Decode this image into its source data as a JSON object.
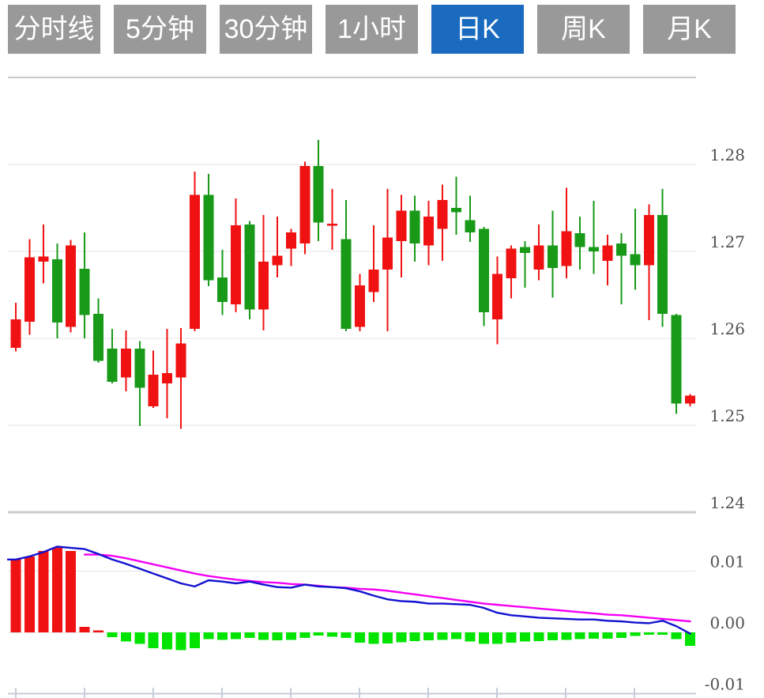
{
  "toolbar": {
    "active_color": "#1a6bbf",
    "inactive_color": "#999999",
    "buttons": [
      {
        "label": "分时线",
        "active": false
      },
      {
        "label": "5分钟",
        "active": false
      },
      {
        "label": "30分钟",
        "active": false
      },
      {
        "label": "1小时",
        "active": false
      },
      {
        "label": "日K",
        "active": true
      },
      {
        "label": "周K",
        "active": false
      },
      {
        "label": "月K",
        "active": false
      }
    ]
  },
  "chart_data": [
    {
      "type": "candlestick",
      "title": "",
      "y_axis": {
        "labels": [
          "1.28",
          "1.27",
          "1.26",
          "1.25",
          "1.24"
        ],
        "values": [
          1.28,
          1.27,
          1.26,
          1.25,
          1.24
        ],
        "range": [
          1.235,
          1.29
        ],
        "grid": true,
        "position": "right"
      },
      "colors": {
        "up": "#f01212",
        "down": "#189a18"
      },
      "ohlc_order": [
        "open",
        "high",
        "low",
        "close"
      ],
      "candles": [
        [
          1.2589,
          1.2641,
          1.2585,
          1.2622
        ],
        [
          1.2619,
          1.2714,
          1.2604,
          1.2693
        ],
        [
          1.2688,
          1.2731,
          1.2663,
          1.2694
        ],
        [
          1.2691,
          1.2709,
          1.26,
          1.2618
        ],
        [
          1.2613,
          1.2713,
          1.2607,
          1.2707
        ],
        [
          1.268,
          1.2722,
          1.26,
          1.2627
        ],
        [
          1.2628,
          1.2646,
          1.2572,
          1.2574
        ],
        [
          1.2588,
          1.2611,
          1.2548,
          1.255
        ],
        [
          1.2555,
          1.2609,
          1.2539,
          1.2588
        ],
        [
          1.2588,
          1.2597,
          1.2499,
          1.2543
        ],
        [
          1.2522,
          1.2586,
          1.252,
          1.2558
        ],
        [
          1.2548,
          1.2611,
          1.2508,
          1.256
        ],
        [
          1.2555,
          1.2612,
          1.2496,
          1.2594
        ],
        [
          1.2611,
          1.2792,
          1.2608,
          1.2765
        ],
        [
          1.2765,
          1.2789,
          1.266,
          1.2667
        ],
        [
          1.267,
          1.2702,
          1.2627,
          1.2642
        ],
        [
          1.2639,
          1.2761,
          1.263,
          1.273
        ],
        [
          1.2731,
          1.2735,
          1.2622,
          1.2633
        ],
        [
          1.2633,
          1.2742,
          1.2609,
          1.2688
        ],
        [
          1.2684,
          1.274,
          1.267,
          1.2695
        ],
        [
          1.2703,
          1.2726,
          1.2683,
          1.2722
        ],
        [
          1.2709,
          1.2803,
          1.2697,
          1.2798
        ],
        [
          1.2798,
          1.2828,
          1.2712,
          1.2733
        ],
        [
          1.273,
          1.2772,
          1.2702,
          1.2732
        ],
        [
          1.2714,
          1.2759,
          1.2608,
          1.2611
        ],
        [
          1.2613,
          1.2674,
          1.2608,
          1.2661
        ],
        [
          1.2653,
          1.273,
          1.2642,
          1.2679
        ],
        [
          1.2679,
          1.2772,
          1.2608,
          1.2716
        ],
        [
          1.2712,
          1.2765,
          1.267,
          1.2747
        ],
        [
          1.2747,
          1.2764,
          1.2688,
          1.2709
        ],
        [
          1.2707,
          1.2758,
          1.2684,
          1.274
        ],
        [
          1.2726,
          1.2777,
          1.2689,
          1.2759
        ],
        [
          1.275,
          1.2786,
          1.2719,
          1.2745
        ],
        [
          1.2736,
          1.2764,
          1.2711,
          1.2722
        ],
        [
          1.2726,
          1.2728,
          1.2614,
          1.263
        ],
        [
          1.2622,
          1.2694,
          1.2593,
          1.2674
        ],
        [
          1.2669,
          1.2707,
          1.2646,
          1.2703
        ],
        [
          1.2705,
          1.2712,
          1.2658,
          1.2698
        ],
        [
          1.2679,
          1.2731,
          1.2667,
          1.2707
        ],
        [
          1.2707,
          1.2747,
          1.2647,
          1.2681
        ],
        [
          1.2683,
          1.2773,
          1.2669,
          1.2723
        ],
        [
          1.2721,
          1.274,
          1.2679,
          1.2705
        ],
        [
          1.2705,
          1.2758,
          1.2674,
          1.27
        ],
        [
          1.2689,
          1.2719,
          1.2661,
          1.2707
        ],
        [
          1.2709,
          1.2721,
          1.2639,
          1.2695
        ],
        [
          1.2697,
          1.2749,
          1.2656,
          1.2684
        ],
        [
          1.2684,
          1.2754,
          1.2621,
          1.2742
        ],
        [
          1.2742,
          1.2772,
          1.2613,
          1.2628
        ],
        [
          1.2627,
          1.2628,
          1.2513,
          1.2525
        ],
        [
          1.2525,
          1.2536,
          1.2522,
          1.2534
        ]
      ]
    },
    {
      "type": "macd",
      "title": "",
      "y_axis": {
        "labels": [
          "0.01",
          "0.00",
          "-0.01"
        ],
        "values": [
          0.01,
          0.0,
          -0.01
        ],
        "range": [
          -0.013,
          0.016
        ],
        "grid": true,
        "position": "right"
      },
      "colors": {
        "positive": "#f01212",
        "negative": "#00e400",
        "dif": "#1212d0",
        "dea": "#f500f5"
      },
      "histogram": [
        0.012,
        0.0124,
        0.0133,
        0.0138,
        0.0133,
        0.0009,
        0.0003,
        -0.0008,
        -0.0015,
        -0.0019,
        -0.0026,
        -0.0028,
        -0.0029,
        -0.0026,
        -0.0011,
        -0.0012,
        -0.0011,
        -0.0009,
        -0.0012,
        -0.0013,
        -0.0012,
        -0.0009,
        -0.0005,
        -0.0007,
        -0.0009,
        -0.0017,
        -0.0019,
        -0.0018,
        -0.0016,
        -0.0014,
        -0.0013,
        -0.0012,
        -0.0011,
        -0.0015,
        -0.0019,
        -0.0019,
        -0.0017,
        -0.0015,
        -0.0014,
        -0.0013,
        -0.0012,
        -0.0011,
        -0.001,
        -0.001,
        -0.0009,
        -0.0006,
        -0.0004,
        -0.0004,
        -0.0011,
        -0.0022
      ],
      "dif": [
        0.0119,
        0.0124,
        0.0131,
        0.014,
        0.0138,
        0.0136,
        0.0128,
        0.0119,
        0.0112,
        0.0104,
        0.0096,
        0.0088,
        0.008,
        0.0075,
        0.0085,
        0.0083,
        0.008,
        0.0083,
        0.0078,
        0.0074,
        0.0073,
        0.0078,
        0.0075,
        0.0074,
        0.0072,
        0.0067,
        0.006,
        0.0054,
        0.0051,
        0.005,
        0.0047,
        0.0047,
        0.0046,
        0.0045,
        0.004,
        0.0032,
        0.0028,
        0.0026,
        0.0024,
        0.0023,
        0.0022,
        0.0021,
        0.0021,
        0.0019,
        0.0018,
        0.0016,
        0.0015,
        0.0019,
        0.001,
        -0.0002
      ],
      "dea": [
        null,
        null,
        null,
        null,
        null,
        0.0127,
        0.0127,
        0.0125,
        0.0121,
        0.0116,
        0.0111,
        0.0106,
        0.0101,
        0.0096,
        0.0092,
        0.0089,
        0.0086,
        0.0084,
        0.0082,
        0.0081,
        0.0079,
        0.0078,
        0.0076,
        0.0074,
        0.0073,
        0.0071,
        0.007,
        0.0068,
        0.0065,
        0.0062,
        0.0059,
        0.0056,
        0.0053,
        0.005,
        0.0047,
        0.0045,
        0.0043,
        0.0041,
        0.0039,
        0.0037,
        0.0035,
        0.0033,
        0.0031,
        0.0029,
        0.0028,
        0.0026,
        0.0024,
        0.0022,
        0.002,
        0.0018
      ]
    }
  ]
}
